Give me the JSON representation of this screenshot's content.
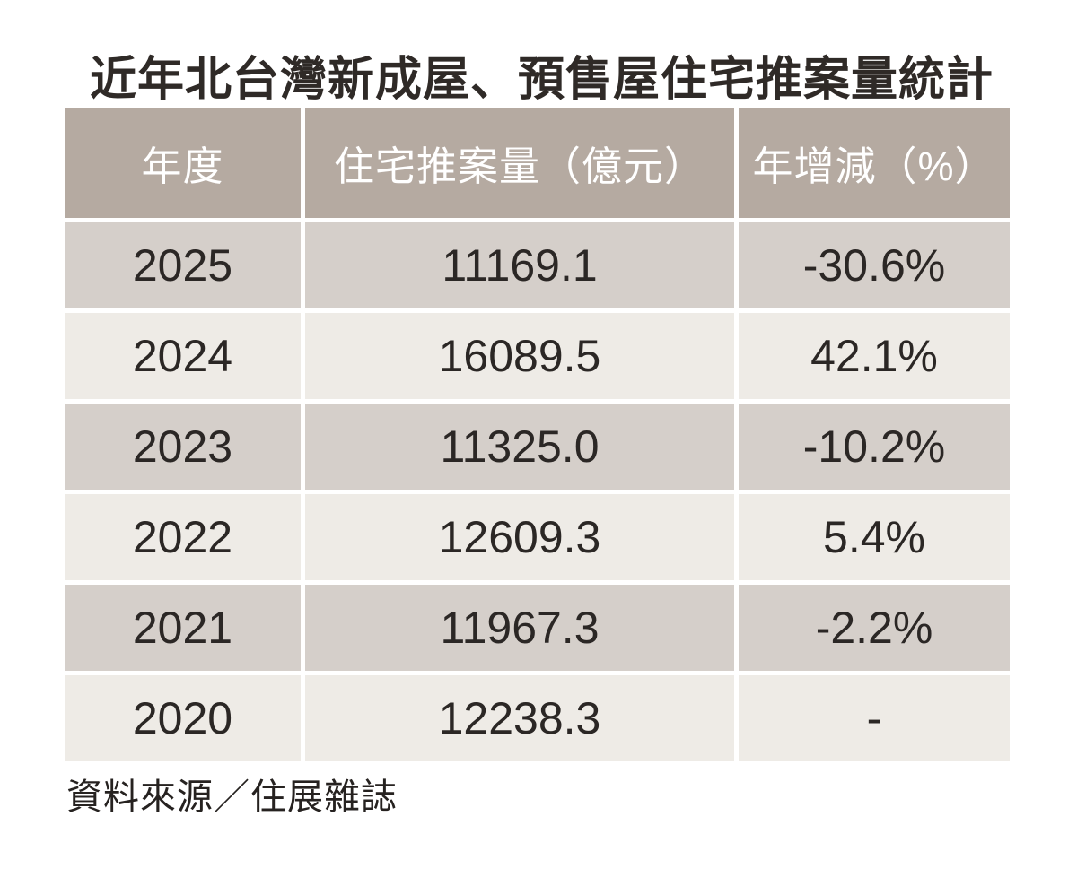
{
  "page": {
    "title": "近年北台灣新成屋、預售屋住宅推案量統計",
    "source": "資料來源／住展雜誌"
  },
  "colors": {
    "header_bg": "#b5aaa1",
    "header_text": "#ffffff",
    "row_dark_bg": "#d5cfca",
    "row_light_bg": "#eeebe6",
    "body_text": "#2b2725",
    "title_text": "#2f2a27",
    "page_bg": "#ffffff"
  },
  "chart_data": {
    "type": "table",
    "title": "近年北台灣新成屋、預售屋住宅推案量統計",
    "columns": [
      "年度",
      "住宅推案量（億元）",
      "年增減（%）"
    ],
    "rows": [
      [
        "2025",
        "11169.1",
        "-30.6%"
      ],
      [
        "2024",
        "16089.5",
        "42.1%"
      ],
      [
        "2023",
        "11325.0",
        "-10.2%"
      ],
      [
        "2022",
        "12609.3",
        "5.4%"
      ],
      [
        "2021",
        "11967.3",
        "-2.2%"
      ],
      [
        "2020",
        "12238.3",
        "-"
      ]
    ],
    "years": [
      2025,
      2024,
      2023,
      2022,
      2021,
      2020
    ],
    "volumes_yi_yuan": [
      11169.1,
      16089.5,
      11325.0,
      12609.3,
      11967.3,
      12238.3
    ],
    "yoy_change_pct": [
      -30.6,
      42.1,
      -10.2,
      5.4,
      -2.2,
      null
    ],
    "source": "資料來源／住展雜誌",
    "legend_position": "none",
    "grid": "cell-gaps-white"
  }
}
